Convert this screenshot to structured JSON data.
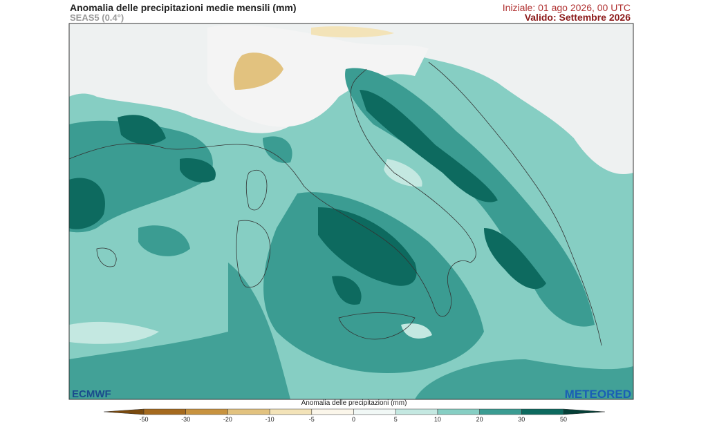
{
  "header": {
    "title": "Anomalia delle precipitazioni medie mensili (mm)",
    "subtitle": "SEAS5 (0.4°)",
    "init": "Iniziale: 01 ago 2026, 00 UTC",
    "valid": "Valido: Settembre 2026"
  },
  "logos": {
    "left": "ECMWF",
    "right": "METEORED"
  },
  "colorbar": {
    "label": "Anomalia delle precipitazioni (mm)",
    "ticks": [
      -50,
      -30,
      -20,
      -10,
      -5,
      0,
      5,
      10,
      20,
      30,
      50
    ],
    "colors": [
      "#7a4a0e",
      "#a56a1e",
      "#c8933f",
      "#e2c27f",
      "#f3e3b8",
      "#fbf6ea",
      "#f1f8f6",
      "#c4e8e1",
      "#86cec3",
      "#3b9c92",
      "#0d6a5f",
      "#053f37"
    ]
  }
}
